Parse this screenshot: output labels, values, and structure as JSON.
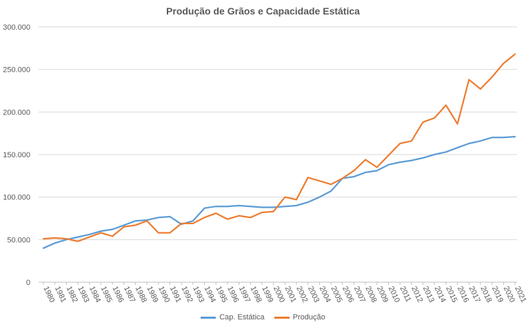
{
  "chart_data": {
    "type": "line",
    "title": "Produção de Grãos e Capacidade Estática",
    "xlabel": "",
    "ylabel": "",
    "ylim": [
      0,
      300000
    ],
    "yticks": [
      0,
      50000,
      100000,
      150000,
      200000,
      250000,
      300000
    ],
    "ytick_labels": [
      "0",
      "50.000",
      "100.000",
      "150.000",
      "200.000",
      "250.000",
      "300.000"
    ],
    "grid": true,
    "legend_position": "bottom",
    "categories": [
      "1980",
      "1981",
      "1982",
      "1983",
      "1984",
      "1985",
      "1986",
      "1987",
      "1988",
      "1989",
      "1990",
      "1991",
      "1992",
      "1993",
      "1994",
      "1995",
      "1996",
      "1997",
      "1998",
      "1999",
      "2000",
      "2001",
      "2002",
      "2003",
      "2004",
      "2005",
      "2006",
      "2007",
      "2008",
      "2009",
      "2010",
      "2011",
      "2012",
      "2013",
      "2014",
      "2015",
      "2016",
      "2017",
      "2018",
      "2019",
      "2020",
      "2021"
    ],
    "series": [
      {
        "name": "Cap. Estática",
        "color": "#5B9BD5",
        "values": [
          40000,
          46000,
          50000,
          53000,
          56000,
          60000,
          62000,
          67000,
          72000,
          73000,
          76000,
          77000,
          68000,
          72000,
          87000,
          89000,
          89000,
          90000,
          89000,
          88000,
          88000,
          89000,
          90000,
          94000,
          100000,
          107000,
          122000,
          124000,
          129000,
          131000,
          138000,
          141000,
          143000,
          146000,
          150000,
          153000,
          158000,
          163000,
          166000,
          170000,
          170000,
          171000
        ]
      },
      {
        "name": "Produção",
        "color": "#ED7D31",
        "values": [
          51000,
          52000,
          51000,
          48000,
          53000,
          58000,
          54000,
          65000,
          67000,
          72000,
          58000,
          58000,
          69000,
          69000,
          76000,
          81000,
          74000,
          78000,
          76000,
          82000,
          83000,
          100000,
          97000,
          123000,
          119000,
          115000,
          122000,
          131000,
          144000,
          135000,
          149000,
          163000,
          166000,
          188000,
          193000,
          208000,
          186000,
          238000,
          227000,
          241000,
          257000,
          268000
        ]
      }
    ]
  }
}
